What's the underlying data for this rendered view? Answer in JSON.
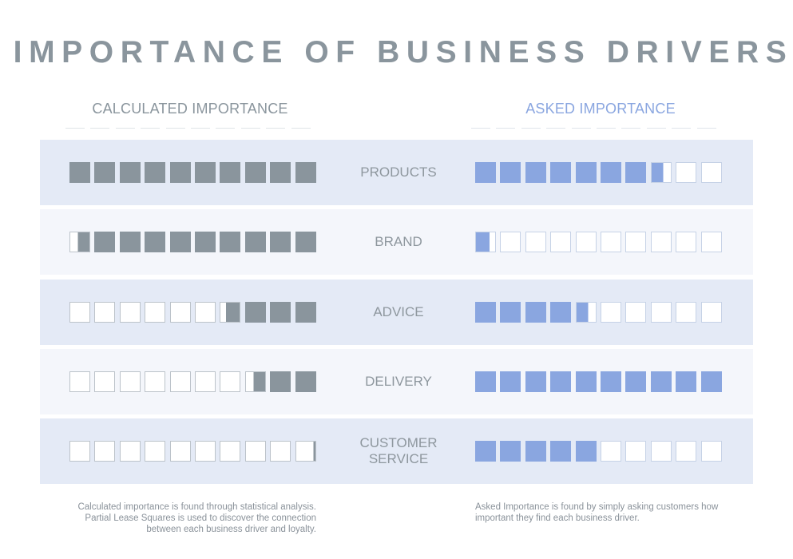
{
  "title": "IMPORTANCE OF BUSINESS DRIVERS",
  "colors": {
    "title": "#8a959d",
    "calculated_fill": "#8a959d",
    "asked_fill": "#8aa6e0",
    "empty_border_calculated": "#bcc3ca",
    "empty_border_asked": "#c6d2e6",
    "band_dark": "#e4eaf6",
    "band_light": "#f4f6fb"
  },
  "chart_data": {
    "type": "pictograph",
    "title": "IMPORTANCE OF BUSINESS DRIVERS",
    "units_per_row": 10,
    "series": [
      {
        "name": "CALCULATED IMPORTANCE",
        "fill_direction": "right-to-left",
        "values": [
          10,
          9.6,
          3.7,
          2.6,
          0.1
        ]
      },
      {
        "name": "ASKED IMPORTANCE",
        "fill_direction": "left-to-right",
        "values": [
          7.6,
          0.7,
          4.6,
          10,
          5
        ]
      }
    ],
    "categories": [
      "PRODUCTS",
      "BRAND",
      "ADVICE",
      "DELIVERY",
      "CUSTOMER SERVICE"
    ],
    "category_labels": [
      [
        "PRODUCTS"
      ],
      [
        "BRAND"
      ],
      [
        "ADVICE"
      ],
      [
        "DELIVERY"
      ],
      [
        "CUSTOMER",
        "SERVICE"
      ]
    ],
    "xlabel": "",
    "ylabel": ""
  },
  "notes": {
    "calculated": "Calculated importance is found through statistical analysis. Partial Lease Squares is used to discover the connection between each business driver and loyalty.",
    "asked": "Asked Importance is found by simply asking customers how important they find each business driver."
  }
}
